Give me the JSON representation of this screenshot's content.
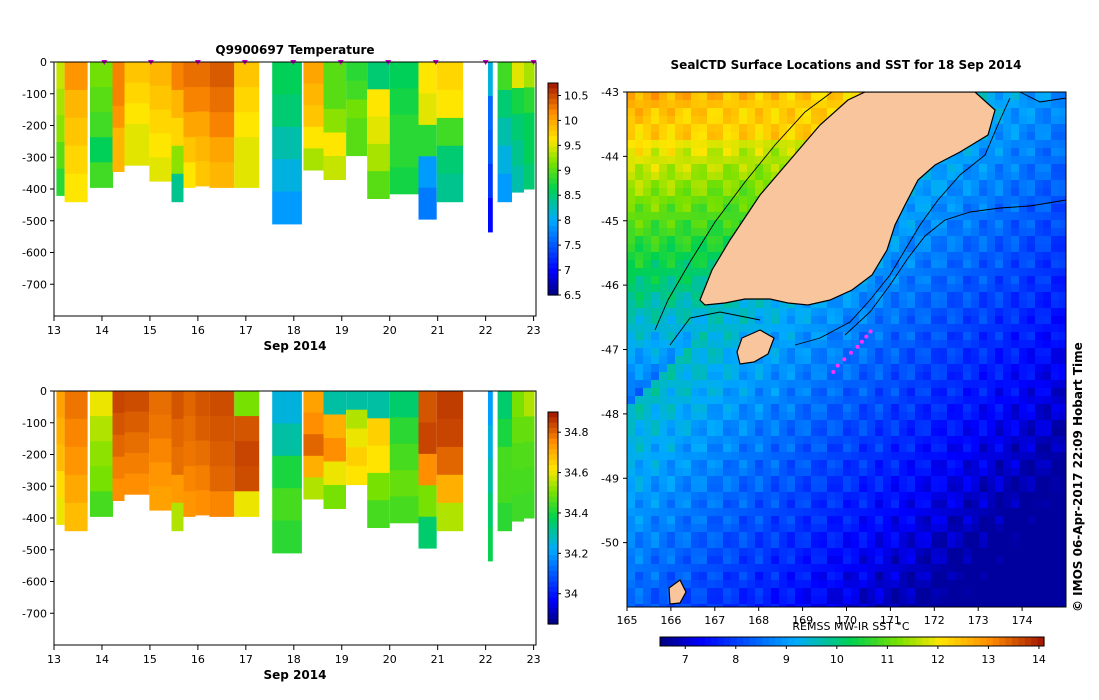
{
  "chart_data": [
    {
      "type": "heatmap",
      "title": "Q9900697  Temperature",
      "xlabel": "Sep 2014",
      "ylabel": "",
      "x_ticks": [
        13,
        14,
        15,
        16,
        17,
        18,
        19,
        20,
        21,
        22,
        23
      ],
      "x_range": [
        13,
        23.05
      ],
      "y_ticks": [
        0,
        -100,
        -200,
        -300,
        -400,
        -500,
        -600,
        -700
      ],
      "y_range": [
        -800,
        0
      ],
      "colorbar": {
        "ticks": [
          "6.5",
          "7",
          "7.5",
          "8",
          "8.5",
          "9",
          "9.5",
          "10",
          "10.5"
        ],
        "range": [
          6.5,
          10.75
        ]
      },
      "profiles": [
        {
          "t": 13.05,
          "w": 0.17,
          "depth": 420,
          "v": [
            9.4,
            9.3,
            9.2,
            9.0,
            8.8
          ]
        },
        {
          "t": 13.22,
          "w": 0.48,
          "depth": 440,
          "v": [
            10.1,
            9.9,
            9.8,
            9.7,
            9.6
          ]
        },
        {
          "t": 13.75,
          "w": 0.48,
          "depth": 395,
          "v": [
            9.1,
            9.0,
            8.9,
            8.6,
            8.9
          ]
        },
        {
          "t": 14.22,
          "w": 0.25,
          "depth": 345,
          "v": [
            10.2,
            10.2,
            10.1,
            9.9,
            9.9
          ]
        },
        {
          "t": 14.47,
          "w": 0.52,
          "depth": 325,
          "v": [
            9.8,
            9.7,
            9.6,
            9.5,
            9.5
          ]
        },
        {
          "t": 14.99,
          "w": 0.46,
          "depth": 375,
          "v": [
            9.9,
            9.8,
            9.7,
            9.6,
            9.5
          ]
        },
        {
          "t": 15.45,
          "w": 0.25,
          "depth": 440,
          "v": [
            10.2,
            9.9,
            9.7,
            9.2,
            8.4
          ]
        },
        {
          "t": 15.7,
          "w": 0.25,
          "depth": 395,
          "v": [
            10.3,
            10.2,
            10.0,
            9.8,
            9.6
          ]
        },
        {
          "t": 15.95,
          "w": 0.29,
          "depth": 390,
          "v": [
            10.3,
            10.2,
            10.0,
            9.9,
            9.8
          ]
        },
        {
          "t": 16.24,
          "w": 0.52,
          "depth": 395,
          "v": [
            10.4,
            10.3,
            10.2,
            10.0,
            9.9
          ]
        },
        {
          "t": 16.76,
          "w": 0.52,
          "depth": 395,
          "v": [
            9.8,
            9.7,
            9.6,
            9.5,
            9.5
          ]
        },
        {
          "t": 17.55,
          "w": 0.62,
          "depth": 510,
          "v": [
            8.6,
            8.5,
            8.3,
            8.1,
            7.9
          ]
        },
        {
          "t": 18.2,
          "w": 0.42,
          "depth": 340,
          "v": [
            10.0,
            9.9,
            9.8,
            9.6,
            9.3
          ]
        },
        {
          "t": 18.62,
          "w": 0.47,
          "depth": 370,
          "v": [
            9.0,
            9.0,
            9.2,
            9.6,
            9.4
          ]
        },
        {
          "t": 19.09,
          "w": 0.44,
          "depth": 295,
          "v": [
            8.8,
            8.9,
            9.1,
            9.0,
            9.0
          ]
        },
        {
          "t": 19.53,
          "w": 0.47,
          "depth": 430,
          "v": [
            8.5,
            9.6,
            9.5,
            9.3,
            9.0
          ]
        },
        {
          "t": 20.0,
          "w": 0.6,
          "depth": 415,
          "v": [
            8.6,
            8.7,
            8.8,
            8.8,
            8.7
          ]
        },
        {
          "t": 20.6,
          "w": 0.38,
          "depth": 495,
          "v": [
            9.6,
            9.5,
            8.8,
            7.9,
            7.7
          ]
        },
        {
          "t": 20.98,
          "w": 0.55,
          "depth": 440,
          "v": [
            9.7,
            9.6,
            8.9,
            8.5,
            8.4
          ]
        },
        {
          "t": 22.05,
          "w": 0.1,
          "depth": 535,
          "v": [
            8.1,
            7.6,
            7.5,
            7.3,
            7.0
          ]
        },
        {
          "t": 22.25,
          "w": 0.3,
          "depth": 440,
          "v": [
            8.9,
            8.5,
            8.3,
            8.1,
            7.9
          ]
        },
        {
          "t": 22.55,
          "w": 0.25,
          "depth": 410,
          "v": [
            9.5,
            8.7,
            8.5,
            8.4,
            8.3
          ]
        },
        {
          "t": 22.8,
          "w": 0.22,
          "depth": 400,
          "v": [
            9.3,
            8.8,
            8.6,
            8.6,
            8.5
          ]
        }
      ],
      "surface_markers": [
        14.05,
        15.02,
        16.0,
        16.98,
        17.99,
        18.98,
        19.97,
        20.96,
        22.0,
        23.0
      ]
    },
    {
      "type": "heatmap",
      "title": "",
      "xlabel": "Sep 2014",
      "ylabel": "",
      "x_ticks": [
        13,
        14,
        15,
        16,
        17,
        18,
        19,
        20,
        21,
        22,
        23
      ],
      "x_range": [
        13,
        23.05
      ],
      "y_ticks": [
        0,
        -100,
        -200,
        -300,
        -400,
        -500,
        -600,
        -700
      ],
      "y_range": [
        -800,
        0
      ],
      "colorbar": {
        "ticks": [
          "34",
          "34.2",
          "34.4",
          "34.6",
          "34.8"
        ],
        "range": [
          33.85,
          34.9
        ]
      },
      "profiles": [
        {
          "t": 13.05,
          "w": 0.17,
          "depth": 420,
          "v": [
            34.72,
            34.7,
            34.68,
            34.63,
            34.6
          ]
        },
        {
          "t": 13.22,
          "w": 0.48,
          "depth": 440,
          "v": [
            34.78,
            34.76,
            34.74,
            34.71,
            34.68
          ]
        },
        {
          "t": 13.75,
          "w": 0.48,
          "depth": 395,
          "v": [
            34.6,
            34.55,
            34.52,
            34.5,
            34.45
          ]
        },
        {
          "t": 14.22,
          "w": 0.25,
          "depth": 345,
          "v": [
            34.84,
            34.82,
            34.8,
            34.77,
            34.75
          ]
        },
        {
          "t": 14.47,
          "w": 0.52,
          "depth": 325,
          "v": [
            34.83,
            34.81,
            34.79,
            34.77,
            34.75
          ]
        },
        {
          "t": 14.99,
          "w": 0.46,
          "depth": 375,
          "v": [
            34.79,
            34.78,
            34.76,
            34.74,
            34.72
          ]
        },
        {
          "t": 15.45,
          "w": 0.25,
          "depth": 440,
          "v": [
            34.82,
            34.8,
            34.79,
            34.73,
            34.55
          ]
        },
        {
          "t": 15.7,
          "w": 0.25,
          "depth": 395,
          "v": [
            34.8,
            34.79,
            34.78,
            34.76,
            34.74
          ]
        },
        {
          "t": 15.95,
          "w": 0.29,
          "depth": 390,
          "v": [
            34.82,
            34.81,
            34.79,
            34.77,
            34.75
          ]
        },
        {
          "t": 16.24,
          "w": 0.52,
          "depth": 395,
          "v": [
            34.83,
            34.82,
            34.81,
            34.8,
            34.76
          ]
        },
        {
          "t": 16.76,
          "w": 0.52,
          "depth": 395,
          "v": [
            34.5,
            34.82,
            34.84,
            34.83,
            34.6
          ]
        },
        {
          "t": 17.55,
          "w": 0.62,
          "depth": 510,
          "v": [
            34.25,
            34.3,
            34.4,
            34.45,
            34.42
          ]
        },
        {
          "t": 18.2,
          "w": 0.42,
          "depth": 340,
          "v": [
            34.72,
            34.75,
            34.8,
            34.7,
            34.55
          ]
        },
        {
          "t": 18.62,
          "w": 0.47,
          "depth": 370,
          "v": [
            34.3,
            34.7,
            34.75,
            34.6,
            34.5
          ]
        },
        {
          "t": 19.09,
          "w": 0.44,
          "depth": 295,
          "v": [
            34.3,
            34.55,
            34.6,
            34.65,
            34.62
          ]
        },
        {
          "t": 19.53,
          "w": 0.47,
          "depth": 430,
          "v": [
            34.3,
            34.65,
            34.62,
            34.5,
            34.45
          ]
        },
        {
          "t": 20.0,
          "w": 0.6,
          "depth": 415,
          "v": [
            34.35,
            34.42,
            34.45,
            34.48,
            34.45
          ]
        },
        {
          "t": 20.6,
          "w": 0.38,
          "depth": 495,
          "v": [
            34.82,
            34.84,
            34.75,
            34.5,
            34.35
          ]
        },
        {
          "t": 20.98,
          "w": 0.55,
          "depth": 440,
          "v": [
            34.85,
            34.84,
            34.8,
            34.7,
            34.55
          ]
        },
        {
          "t": 22.05,
          "w": 0.1,
          "depth": 535,
          "v": [
            34.2,
            34.25,
            34.3,
            34.35,
            34.38
          ]
        },
        {
          "t": 22.25,
          "w": 0.3,
          "depth": 440,
          "v": [
            34.35,
            34.4,
            34.45,
            34.45,
            34.42
          ]
        },
        {
          "t": 22.55,
          "w": 0.25,
          "depth": 410,
          "v": [
            34.5,
            34.48,
            34.46,
            34.45,
            34.44
          ]
        },
        {
          "t": 22.8,
          "w": 0.22,
          "depth": 400,
          "v": [
            34.55,
            34.48,
            34.46,
            34.45,
            34.44
          ]
        }
      ]
    },
    {
      "type": "heatmap",
      "title": "SealCTD Surface Locations and SST for 18 Sep 2014",
      "xlabel": "",
      "ylabel": "",
      "x_ticks": [
        165,
        166,
        167,
        168,
        169,
        170,
        171,
        172,
        173,
        174
      ],
      "x_range": [
        165,
        175
      ],
      "y_ticks": [
        -43,
        -44,
        -45,
        -46,
        -47,
        -48,
        -49,
        -50
      ],
      "y_range": [
        -51,
        -43
      ],
      "colorbar": {
        "label": "REMSS MW-IR SST °C",
        "ticks": [
          "7",
          "8",
          "9",
          "10",
          "11",
          "12",
          "13",
          "14"
        ],
        "range": [
          6.5,
          14.1
        ]
      },
      "seal_locations": [
        {
          "lon": 170.55,
          "lat": -46.72
        },
        {
          "lon": 170.45,
          "lat": -46.8
        },
        {
          "lon": 170.35,
          "lat": -46.88
        },
        {
          "lon": 170.25,
          "lat": -46.96
        },
        {
          "lon": 170.1,
          "lat": -47.05
        },
        {
          "lon": 169.95,
          "lat": -47.15
        },
        {
          "lon": 169.8,
          "lat": -47.25
        },
        {
          "lon": 169.7,
          "lat": -47.35
        }
      ],
      "credit": "© IMOS 06-Apr-2017 22:09 Hobart Time"
    }
  ]
}
